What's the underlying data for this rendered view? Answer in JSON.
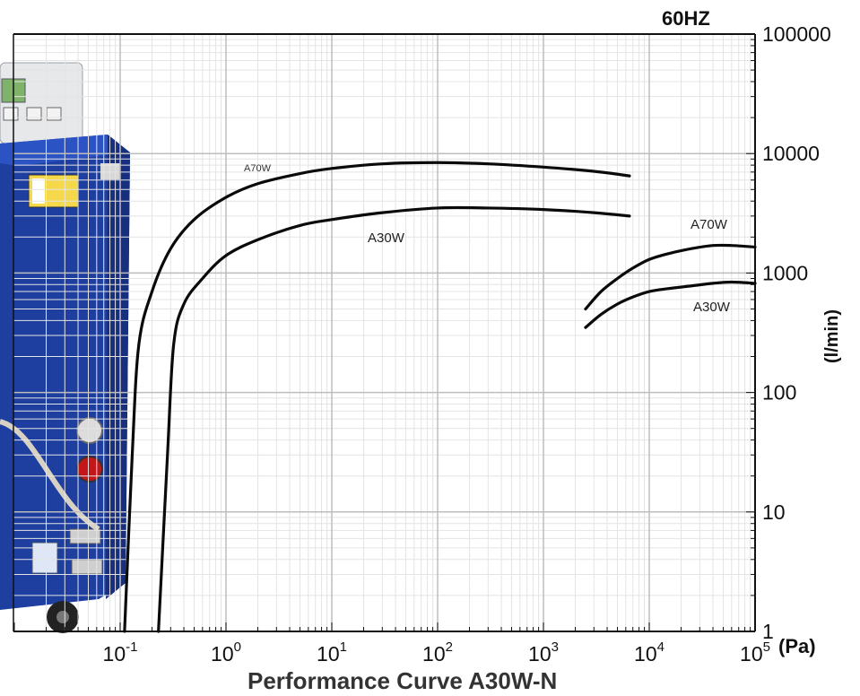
{
  "chart_data": {
    "type": "line",
    "title": "Performance Curve A30W-N",
    "frequency_label": "60HZ",
    "x_unit": "(Pa)",
    "y_unit": "(l/min)",
    "x_scale": "log",
    "y_scale": "log",
    "xlim": [
      0.02,
      100000
    ],
    "ylim": [
      1,
      100000
    ],
    "grid": true,
    "x_ticks": [
      {
        "base": "10",
        "exp": "-1",
        "value": 0.1
      },
      {
        "base": "10",
        "exp": "0",
        "value": 1
      },
      {
        "base": "10",
        "exp": "1",
        "value": 10
      },
      {
        "base": "10",
        "exp": "2",
        "value": 100
      },
      {
        "base": "10",
        "exp": "3",
        "value": 1000
      },
      {
        "base": "10",
        "exp": "4",
        "value": 10000
      },
      {
        "base": "10",
        "exp": "5",
        "value": 100000
      }
    ],
    "y_ticks": [
      {
        "label": "1",
        "value": 1
      },
      {
        "label": "10",
        "value": 10
      },
      {
        "label": "100",
        "value": 100
      },
      {
        "label": "1000",
        "value": 1000
      },
      {
        "label": "10000",
        "value": 10000
      },
      {
        "label": "100000",
        "value": 100000
      }
    ],
    "series": [
      {
        "name": "A70W",
        "x": [
          0.11,
          0.13,
          0.15,
          0.2,
          0.3,
          0.5,
          1,
          2,
          5,
          10,
          30,
          100,
          300,
          1000,
          3000,
          6500
        ],
        "y": [
          1,
          30,
          250,
          700,
          1600,
          2800,
          4300,
          5600,
          6800,
          7500,
          8200,
          8400,
          8200,
          7700,
          7100,
          6500
        ]
      },
      {
        "name": "A30W",
        "x": [
          0.23,
          0.28,
          0.32,
          0.4,
          0.6,
          1,
          2,
          5,
          10,
          30,
          100,
          300,
          1000,
          3000,
          6500
        ],
        "y": [
          1,
          30,
          250,
          550,
          900,
          1400,
          1900,
          2500,
          2800,
          3200,
          3500,
          3500,
          3400,
          3200,
          3000
        ]
      },
      {
        "name": "A70W",
        "x": [
          2500,
          3500,
          5000,
          7000,
          10000,
          15000,
          25000,
          40000,
          60000,
          100000
        ],
        "y": [
          500,
          700,
          900,
          1100,
          1300,
          1450,
          1600,
          1700,
          1700,
          1650
        ]
      },
      {
        "name": "A30W",
        "x": [
          2500,
          3500,
          5000,
          7000,
          10000,
          15000,
          25000,
          40000,
          60000,
          100000
        ],
        "y": [
          350,
          450,
          550,
          630,
          700,
          740,
          780,
          820,
          840,
          820
        ]
      }
    ]
  }
}
